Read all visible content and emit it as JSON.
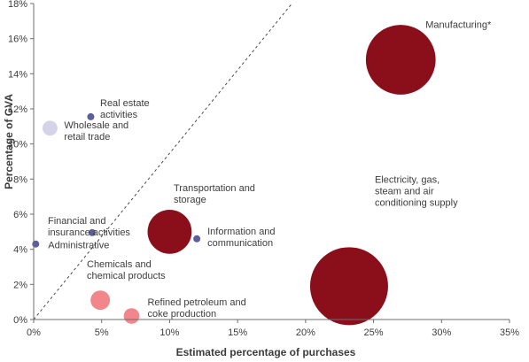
{
  "chart_data": {
    "type": "bubble",
    "xlabel": "Estimated percentage of purchases",
    "ylabel": "Percentage of GVA",
    "xlim": [
      0,
      35
    ],
    "ylim": [
      0,
      18
    ],
    "x_ticks": [
      "0%",
      "5%",
      "10%",
      "15%",
      "20%",
      "25%",
      "30%",
      "35%"
    ],
    "y_ticks": [
      "0%",
      "2%",
      "4%",
      "6%",
      "8%",
      "10%",
      "12%",
      "14%",
      "16%",
      "18%"
    ],
    "grid": false,
    "reference_line": {
      "style": "dashed",
      "points": [
        [
          0,
          0
        ],
        [
          19,
          18
        ]
      ]
    },
    "colors": {
      "dark_red": "#8a0f1a",
      "pink": "#f2868b",
      "lavender": "#d4d4e8",
      "navy": "#5b5e9c"
    },
    "points": [
      {
        "label": [
          "Manufacturing*"
        ],
        "x": 27.0,
        "y": 14.8,
        "size": 0.8,
        "color": "dark_red"
      },
      {
        "label": [
          "Electricity, gas,",
          "steam and air",
          "conditioning supply"
        ],
        "x": 23.2,
        "y": 1.9,
        "size": 1.0,
        "color": "dark_red"
      },
      {
        "label": [
          "Transportation and",
          "storage"
        ],
        "x": 10.0,
        "y": 5.0,
        "size": 0.32,
        "color": "dark_red"
      },
      {
        "label": [
          "Information and",
          "communication"
        ],
        "x": 12.0,
        "y": 4.6,
        "size": 0.0005,
        "color": "navy"
      },
      {
        "label": [
          "Chemicals and",
          "chemical products"
        ],
        "x": 4.9,
        "y": 1.1,
        "size": 0.062,
        "color": "pink"
      },
      {
        "label": [
          "Refined petroleum and",
          "coke production"
        ],
        "x": 7.2,
        "y": 0.2,
        "size": 0.04,
        "color": "pink"
      },
      {
        "label": [
          "Wholesale and",
          "retail trade"
        ],
        "x": 1.2,
        "y": 10.9,
        "size": 0.037,
        "color": "lavender"
      },
      {
        "label": [
          "Real estate",
          "activities"
        ],
        "x": 4.2,
        "y": 11.55,
        "size": 0.0005,
        "color": "navy"
      },
      {
        "label": [
          "Financial and",
          "insurance activities"
        ],
        "x": 4.3,
        "y": 4.95,
        "size": 0.0004,
        "color": "navy"
      },
      {
        "label": [
          "Administrative"
        ],
        "x": 0.15,
        "y": 4.3,
        "size": 0.0015,
        "color": "navy"
      }
    ]
  }
}
